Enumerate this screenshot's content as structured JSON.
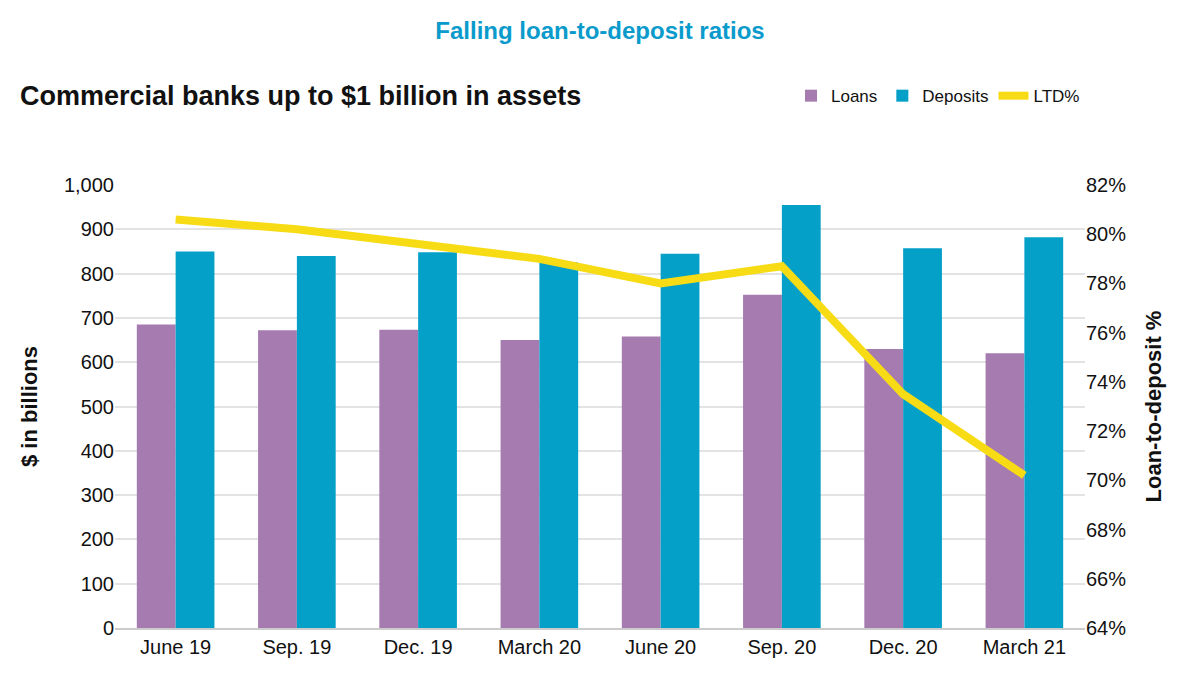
{
  "chart_data": {
    "type": "bar",
    "title": "Falling loan-to-deposit ratios",
    "subtitle": "Commercial banks up to $1 billion in assets",
    "categories": [
      "June 19",
      "Sep. 19",
      "Dec. 19",
      "March 20",
      "June 20",
      "Sep. 20",
      "Dec. 20",
      "March 21"
    ],
    "series": [
      {
        "name": "Loans",
        "type": "bar",
        "color": "#a67bb0",
        "values": [
          685,
          672,
          673,
          650,
          658,
          752,
          630,
          620
        ]
      },
      {
        "name": "Deposits",
        "type": "bar",
        "color": "#05a0c8",
        "values": [
          850,
          840,
          848,
          825,
          845,
          955,
          857,
          882
        ]
      },
      {
        "name": "LTD%",
        "type": "line",
        "axis": "y2",
        "color": "#f7dc15",
        "line_style": "solid",
        "values": [
          80.6,
          80.2,
          79.6,
          79.0,
          78.0,
          78.7,
          73.5,
          70.2
        ]
      }
    ],
    "ylabel": "$ in billions",
    "y2label": "Loan-to-deposit %",
    "ylim": [
      0,
      1000
    ],
    "yticks": [
      0,
      100,
      200,
      300,
      400,
      500,
      600,
      700,
      800,
      900,
      {
        "value": 1000,
        "label": "1,000"
      }
    ],
    "y2lim": [
      64,
      82
    ],
    "y2ticks": [
      {
        "value": 64,
        "label": "64%"
      },
      {
        "value": 66,
        "label": "66%"
      },
      {
        "value": 68,
        "label": "68%"
      },
      {
        "value": 70,
        "label": "70%"
      },
      {
        "value": 72,
        "label": "72%"
      },
      {
        "value": 74,
        "label": "74%"
      },
      {
        "value": 76,
        "label": "76%"
      },
      {
        "value": 78,
        "label": "78%"
      },
      {
        "value": 80,
        "label": "80%"
      },
      {
        "value": 82,
        "label": "82%"
      }
    ],
    "grid": true,
    "legend": "top right"
  }
}
